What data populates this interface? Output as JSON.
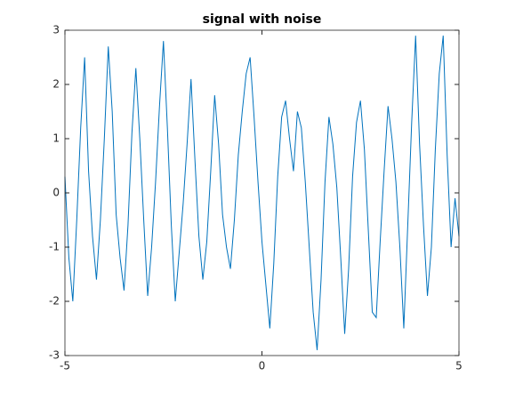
{
  "chart_data": {
    "type": "line",
    "title": "signal with noise",
    "x": [
      -5.0,
      -4.9,
      -4.8,
      -4.7,
      -4.6,
      -4.5,
      -4.4,
      -4.3,
      -4.2,
      -4.1,
      -4.0,
      -3.9,
      -3.8,
      -3.7,
      -3.6,
      -3.5,
      -3.4,
      -3.3,
      -3.2,
      -3.1,
      -3.0,
      -2.9,
      -2.8,
      -2.7,
      -2.6,
      -2.5,
      -2.4,
      -2.3,
      -2.2,
      -2.1,
      -2.0,
      -1.9,
      -1.8,
      -1.7,
      -1.6,
      -1.5,
      -1.4,
      -1.3,
      -1.2,
      -1.1,
      -1.0,
      -0.9,
      -0.8,
      -0.7,
      -0.6,
      -0.5,
      -0.4,
      -0.3,
      -0.2,
      -0.1,
      0.0,
      0.1,
      0.2,
      0.3,
      0.4,
      0.5,
      0.6,
      0.7,
      0.8,
      0.9,
      1.0,
      1.1,
      1.2,
      1.3,
      1.4,
      1.5,
      1.6,
      1.7,
      1.8,
      1.9,
      2.0,
      2.1,
      2.2,
      2.3,
      2.4,
      2.5,
      2.6,
      2.7,
      2.8,
      2.9,
      3.0,
      3.1,
      3.2,
      3.3,
      3.4,
      3.5,
      3.6,
      3.7,
      3.8,
      3.9,
      4.0,
      4.1,
      4.2,
      4.3,
      4.4,
      4.5,
      4.6,
      4.7,
      4.8,
      4.9,
      5.0
    ],
    "series": [
      {
        "color": "#0072bd",
        "values": [
          0.3,
          -1.2,
          -2.0,
          -0.5,
          1.2,
          2.5,
          0.4,
          -0.8,
          -1.6,
          -0.5,
          1.0,
          2.7,
          1.5,
          -0.4,
          -1.2,
          -1.8,
          -0.6,
          1.1,
          2.3,
          1.0,
          -0.5,
          -1.9,
          -1.0,
          0.2,
          1.6,
          2.8,
          1.2,
          -0.6,
          -2.0,
          -1.1,
          -0.2,
          0.9,
          2.1,
          0.6,
          -0.8,
          -1.6,
          -0.9,
          0.4,
          1.8,
          0.9,
          -0.4,
          -1.0,
          -1.4,
          -0.5,
          0.7,
          1.5,
          2.2,
          2.5,
          1.4,
          0.2,
          -0.9,
          -1.7,
          -2.5,
          -1.3,
          0.3,
          1.4,
          1.7,
          1.0,
          0.4,
          1.5,
          1.2,
          0.2,
          -1.0,
          -2.2,
          -2.9,
          -1.6,
          0.2,
          1.4,
          0.9,
          0.1,
          -1.2,
          -2.6,
          -1.4,
          0.3,
          1.3,
          1.7,
          0.8,
          -0.7,
          -2.2,
          -2.3,
          -0.9,
          0.4,
          1.6,
          1.0,
          0.2,
          -1.0,
          -2.5,
          -0.6,
          1.3,
          2.9,
          0.9,
          -0.6,
          -1.9,
          -1.0,
          0.8,
          2.2,
          2.9,
          0.7,
          -1.0,
          -0.1,
          -0.8
        ]
      }
    ],
    "xlim": [
      -5,
      5
    ],
    "xticks": [
      -5,
      0,
      5
    ],
    "ylim": [
      -3,
      3
    ],
    "yticks": [
      -3,
      -2,
      -1,
      0,
      1,
      2,
      3
    ]
  }
}
